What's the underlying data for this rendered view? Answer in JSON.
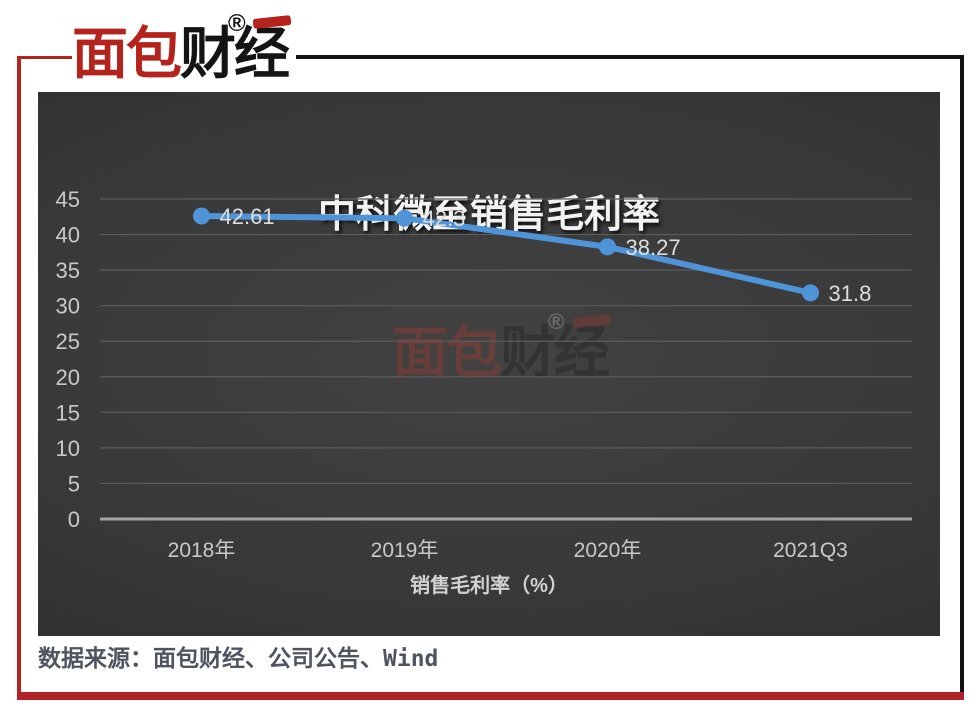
{
  "brand": {
    "logo_red": "面包",
    "logo_black": "财经",
    "registered_mark": "®"
  },
  "watermark": {
    "logo_red": "面包",
    "logo_black": "财经",
    "registered_mark": "®"
  },
  "chart_data": {
    "type": "line",
    "title": "中科微至销售毛利率",
    "categories": [
      "2018年",
      "2019年",
      "2020年",
      "2021Q3"
    ],
    "series": [
      {
        "name": "销售毛利率",
        "values": [
          42.61,
          42.3,
          38.27,
          31.8
        ],
        "labels": [
          "42.61",
          "42.3",
          "38.27",
          "31.8"
        ]
      }
    ],
    "xlabel": "销售毛利率（%）",
    "ylabel": "",
    "ylim": [
      0,
      45
    ],
    "yticks": [
      0,
      5,
      10,
      15,
      20,
      25,
      30,
      35,
      40,
      45
    ],
    "grid": true,
    "legend": "none",
    "line_color": "#4F94D8",
    "marker": "circle",
    "background": "dark-gradient"
  },
  "footer": {
    "source": "数据来源：面包财经、公司公告、Wind"
  },
  "colors": {
    "accent_blue": "#4F94D8",
    "frame_red": "#B3231F",
    "bottom_bar_red": "#B22228",
    "logo_red": "#B5231D",
    "logo_black": "#141414",
    "panel_center": "#424242",
    "panel_edge": "#262626",
    "gridline": "#5c5c5c",
    "axis_line": "#a3a3a3",
    "tick_text": "#c9c9c9",
    "data_label_text": "#dedede",
    "title_text": "#f2f2f2",
    "source_text": "#4e5561"
  }
}
